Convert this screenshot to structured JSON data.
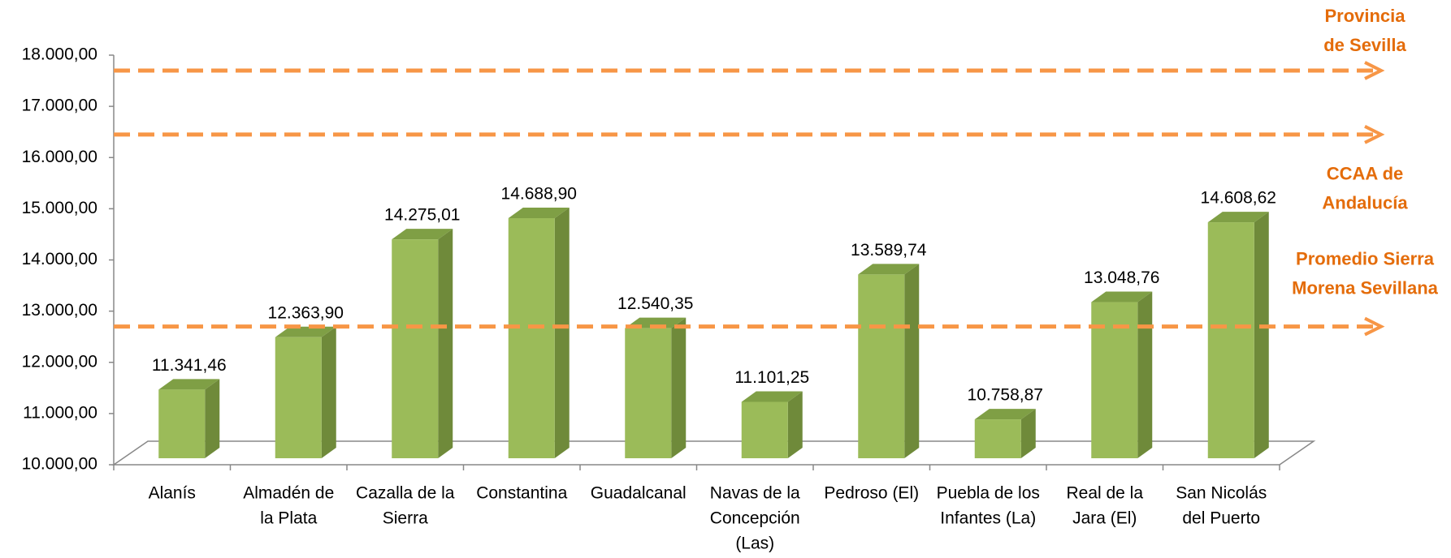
{
  "chart_data": {
    "type": "bar3d",
    "categories": [
      [
        "Alanís"
      ],
      [
        "Almadén de",
        "la Plata"
      ],
      [
        "Cazalla de la",
        "Sierra"
      ],
      [
        "Constantina"
      ],
      [
        "Guadalcanal"
      ],
      [
        "Navas de la",
        "Concepción",
        "(Las)"
      ],
      [
        "Pedroso (El)"
      ],
      [
        "Puebla de los",
        "Infantes (La)"
      ],
      [
        "Real de la",
        "Jara (El)"
      ],
      [
        "San Nicolás",
        "del Puerto"
      ]
    ],
    "values": [
      11341.46,
      12363.9,
      14275.01,
      14688.9,
      12540.35,
      11101.25,
      13589.74,
      10758.87,
      13048.76,
      14608.62
    ],
    "value_labels": [
      "11.341,46",
      "12.363,90",
      "14.275,01",
      "14.688,90",
      "12.540,35",
      "11.101,25",
      "13.589,74",
      "10.758,87",
      "13.048,76",
      "14.608,62"
    ],
    "color": "#9bbb59",
    "ylim": [
      10000,
      18000
    ],
    "yticks": [
      {
        "value": 10000,
        "label": "10.000,00"
      },
      {
        "value": 11000,
        "label": "11.000,00"
      },
      {
        "value": 12000,
        "label": "12.000,00"
      },
      {
        "value": 13000,
        "label": "13.000,00"
      },
      {
        "value": 14000,
        "label": "14.000,00"
      },
      {
        "value": 15000,
        "label": "15.000,00"
      },
      {
        "value": 16000,
        "label": "16.000,00"
      },
      {
        "value": 17000,
        "label": "17.000,00"
      },
      {
        "value": 18000,
        "label": "18.000,00"
      }
    ],
    "reference_lines": [
      {
        "label": [
          "Provincia",
          "de Sevilla"
        ],
        "value": 17700
      },
      {
        "label": [
          "CCAA de",
          "Andalucía"
        ],
        "value": 16450
      },
      {
        "label": [
          "Promedio  Sierra",
          "Morena  Sevillana"
        ],
        "value": 12700
      }
    ],
    "reference_color": "#f79646"
  }
}
